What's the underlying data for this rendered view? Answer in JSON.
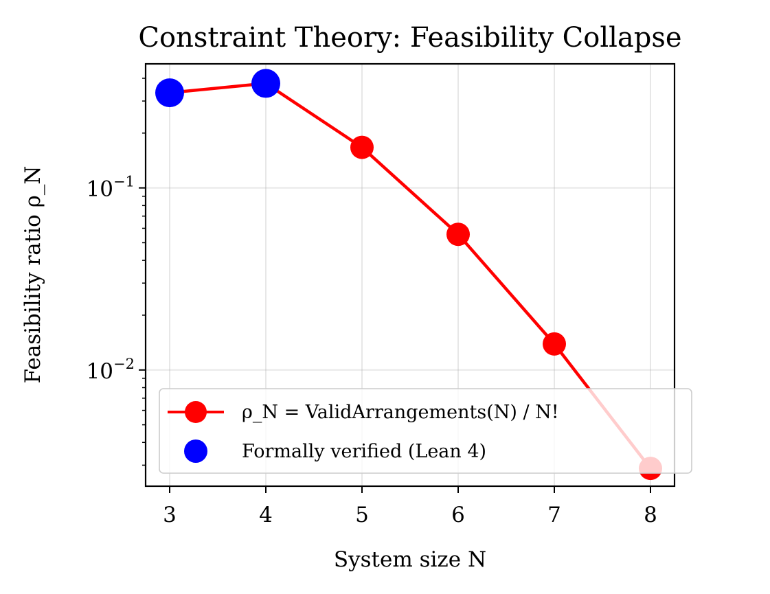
{
  "chart_data": {
    "type": "line",
    "title": "Constraint Theory: Feasibility Collapse",
    "xlabel": "System size N",
    "ylabel": "Feasibility ratio ρ_N",
    "yscale": "log",
    "xlim": [
      2.75,
      8.25
    ],
    "ylim": [
      0.0023,
      0.48
    ],
    "x_ticks": [
      "3",
      "4",
      "5",
      "6",
      "7",
      "8"
    ],
    "y_ticks": [
      {
        "value": 0.1,
        "base": "10",
        "exp": "−1"
      },
      {
        "value": 0.01,
        "base": "10",
        "exp": "−2"
      }
    ],
    "grid": true,
    "legend_position": "lower-left",
    "series": [
      {
        "name": "ρ_N = ValidArrangements(N) / N!",
        "color": "#ff0000",
        "marker": "circle",
        "x": [
          3,
          4,
          5,
          6,
          7,
          8
        ],
        "y": [
          0.333,
          0.375,
          0.167,
          0.0556,
          0.0139,
          0.00288
        ]
      },
      {
        "name": "Formally verified (Lean 4)",
        "color": "#0000ff",
        "marker": "circle",
        "x": [
          3,
          4
        ],
        "y": [
          0.333,
          0.375
        ]
      }
    ]
  }
}
